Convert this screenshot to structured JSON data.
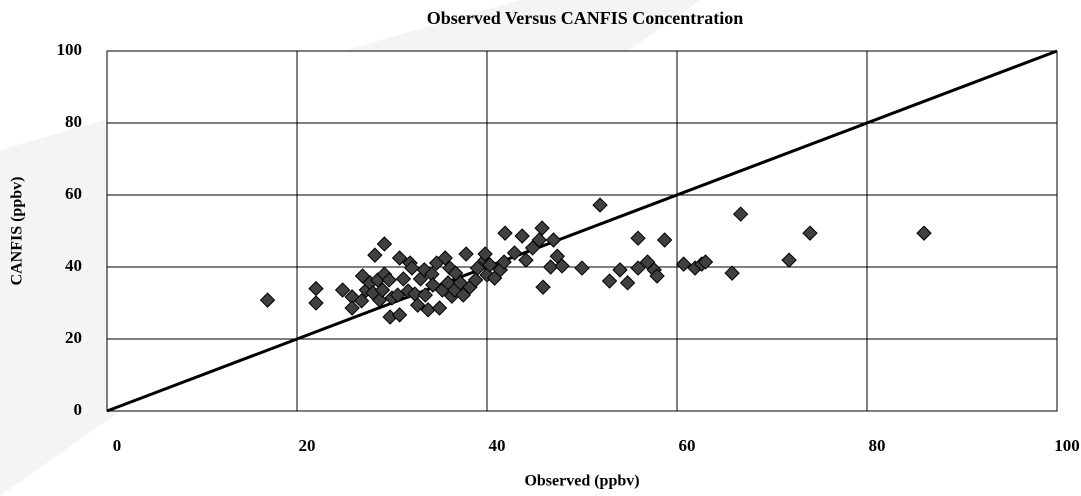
{
  "chart_data": {
    "type": "scatter",
    "title": "Observed Versus CANFIS Concentration",
    "x_label": "Observed (ppbv)",
    "y_label": "CANFIS (ppbv)",
    "xlim": [
      0,
      100
    ],
    "ylim": [
      0,
      100
    ],
    "xticks": [
      0,
      20,
      40,
      60,
      80,
      100
    ],
    "yticks": [
      0,
      20,
      40,
      60,
      80,
      100
    ],
    "grid": true,
    "series": [
      {
        "color": "#404040",
        "x": [
          16.9,
          22,
          22,
          24.8,
          25.8,
          25.8,
          26.8,
          26.9,
          27.3,
          27.7,
          28,
          28.2,
          28.5,
          28.7,
          29,
          29.2,
          29.2,
          29.7,
          29.8,
          30,
          30.6,
          30.8,
          30.8,
          31.2,
          31.7,
          31.9,
          32.1,
          32.4,
          32.7,
          33,
          33.4,
          33.5,
          33.8,
          34.2,
          34.3,
          34.7,
          35,
          35.3,
          35.6,
          35.9,
          36.1,
          36.3,
          36.6,
          36.7,
          37.2,
          37.5,
          37.8,
          38.2,
          38.8,
          39,
          39.8,
          39.8,
          40,
          40.3,
          40.8,
          41.4,
          41.8,
          41.9,
          43.7,
          42.9,
          44.1,
          44.8,
          45.5,
          45.9,
          45.8,
          46.7,
          47,
          47.4,
          47.9,
          51.9,
          50,
          52.9,
          54,
          54.8,
          55.9,
          55.9,
          56.9,
          57.6,
          57.9,
          58.7,
          60.7,
          61.9,
          62.6,
          63,
          65.8,
          66.7,
          71.8,
          74,
          86
        ],
        "values": [
          30.8,
          34,
          30,
          33.6,
          31.7,
          28.6,
          30.6,
          37.5,
          33.6,
          35.6,
          32.8,
          43.3,
          36.4,
          30.8,
          33.6,
          46.4,
          38,
          36.4,
          26.1,
          31.4,
          32.2,
          42.5,
          26.7,
          36.7,
          33.3,
          41.1,
          39.7,
          32.5,
          29.4,
          36.7,
          39.2,
          32.2,
          28.1,
          38,
          35,
          41.1,
          28.6,
          33.6,
          42.5,
          35.6,
          39.7,
          31.9,
          33.6,
          38.3,
          35.6,
          32.2,
          43.6,
          34.4,
          36.4,
          39.7,
          41.9,
          43.6,
          37.8,
          40.6,
          36.9,
          39.2,
          41.4,
          49.4,
          48.6,
          43.9,
          41.9,
          45.3,
          47.5,
          34.4,
          50.8,
          40,
          47.5,
          43,
          40.3,
          57.2,
          39.7,
          36.1,
          39.2,
          35.6,
          39.7,
          48,
          41.4,
          39.2,
          37.5,
          47.5,
          40.8,
          39.7,
          40.8,
          41.4,
          38.3,
          54.7,
          41.9,
          49.4,
          49.4
        ]
      }
    ],
    "reference_line": {
      "x": [
        0,
        100
      ],
      "y": [
        0,
        100
      ]
    }
  }
}
